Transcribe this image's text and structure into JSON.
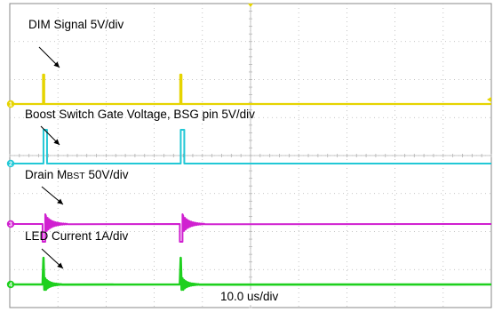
{
  "chart_data": {
    "type": "line",
    "title": "",
    "xlabel": "",
    "ylabel": "",
    "grid": true,
    "timebase": "10.0 us/div",
    "channels": [
      {
        "name": "DIM Signal",
        "scale_label": "DIM Signal 5V/div",
        "marker": "1",
        "color": "#e6d400",
        "events": [
          {
            "div": 0.7,
            "shape": "spike"
          },
          {
            "div": 3.55,
            "shape": "spike"
          }
        ]
      },
      {
        "name": "Boost Switch Gate Voltage, BSG pin",
        "scale_label_pre": "Boost Switch Gate Voltage, BSG pin 5V/div",
        "marker": "2",
        "color": "#22c8d6",
        "events": [
          {
            "div": 0.7,
            "shape": "pulse"
          },
          {
            "div": 3.55,
            "shape": "pulse"
          }
        ]
      },
      {
        "name": "Drain MBST",
        "label_main": "Drain M",
        "label_sub": "BST",
        "label_scale": " 50V/div",
        "marker": "3",
        "color": "#d020d0",
        "events": [
          {
            "div": 0.7,
            "shape": "ring"
          },
          {
            "div": 3.55,
            "shape": "ring"
          }
        ]
      },
      {
        "name": "LED Current",
        "scale_label": "LED Current 1A/div",
        "marker": "4",
        "color": "#1ed01e",
        "events": [
          {
            "div": 0.7,
            "shape": "burst"
          },
          {
            "div": 3.55,
            "shape": "burst"
          }
        ]
      }
    ]
  }
}
